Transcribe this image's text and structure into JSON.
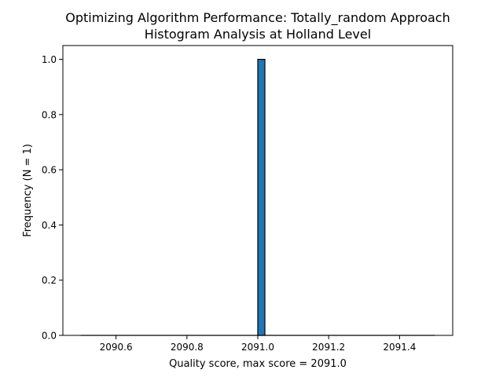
{
  "chart_data": {
    "type": "bar",
    "title_line1": "Optimizing Algorithm Performance: Totally_random Approach",
    "title_line2": "Histogram Analysis at Holland Level",
    "xlabel": "Quality score, max score = 2091.0",
    "ylabel": "Frequency (N = 1)",
    "xlim": [
      2090.45,
      2091.55
    ],
    "ylim": [
      0,
      1.05
    ],
    "x_ticks": [
      2090.6,
      2090.8,
      2091.0,
      2091.2,
      2091.4
    ],
    "x_tick_labels": [
      "2090.6",
      "2090.8",
      "2091.0",
      "2091.2",
      "2091.4"
    ],
    "y_ticks": [
      0.0,
      0.2,
      0.4,
      0.6,
      0.8,
      1.0
    ],
    "y_tick_labels": [
      "0.0",
      "0.2",
      "0.4",
      "0.6",
      "0.8",
      "1.0"
    ],
    "bin_range": [
      2090.5,
      2091.5
    ],
    "bins": [
      {
        "x0": 2091.0,
        "x1": 2091.02,
        "value": 1
      }
    ],
    "bar_color": "#1f77b4",
    "edge_color": "#000000",
    "grid": false
  }
}
